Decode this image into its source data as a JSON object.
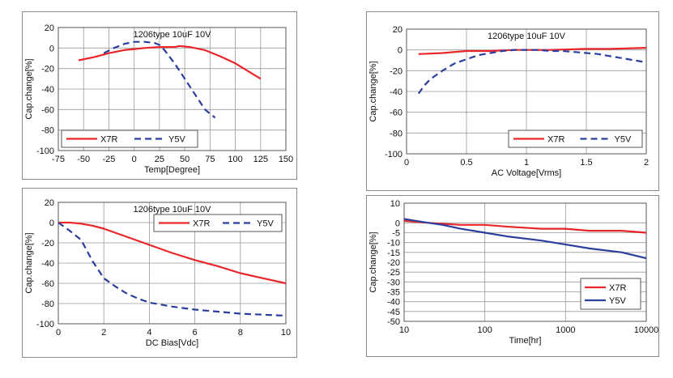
{
  "chart_data": [
    {
      "type": "line",
      "title": "1206type  10uF  10V",
      "xlabel": "Temp[Degree]",
      "ylabel": "Cap.change[%]",
      "xlim": [
        -75,
        150
      ],
      "ylim": [
        -100,
        20
      ],
      "x_scale": "linear",
      "x_ticks": [
        -75,
        -50,
        -25,
        0,
        25,
        50,
        75,
        100,
        125,
        150
      ],
      "y_ticks": [
        20,
        0,
        -20,
        -40,
        -60,
        -80,
        -100
      ],
      "x_tick_labels": [
        "-75",
        "-50",
        "-25",
        "0",
        "25",
        "50",
        "75",
        "100",
        "125",
        "150"
      ],
      "y_tick_labels": [
        "20",
        "0",
        "-20",
        "-40",
        "-60",
        "-80",
        "-100"
      ],
      "grid": true,
      "legend_position": "bottom-left",
      "legend_layout": "row",
      "series": [
        {
          "name": "X7R",
          "color": "#e8262a",
          "dash": false,
          "x": [
            -55,
            -40,
            -25,
            -10,
            0,
            10,
            25,
            40,
            45,
            55,
            70,
            85,
            100,
            125
          ],
          "y": [
            -12,
            -9,
            -5,
            -2,
            -1,
            0,
            1,
            1,
            2,
            1,
            -2,
            -8,
            -15,
            -30
          ]
        },
        {
          "name": "Y5V",
          "color": "#2a3f9d",
          "dash": true,
          "x": [
            -30,
            -20,
            -10,
            -5,
            0,
            5,
            10,
            20,
            25,
            30,
            40,
            50,
            60,
            70,
            80
          ],
          "y": [
            -5,
            0,
            4,
            5,
            6,
            6,
            6,
            5,
            3,
            -2,
            -15,
            -30,
            -45,
            -60,
            -68
          ]
        }
      ]
    },
    {
      "type": "line",
      "title": "1206type  10uF  10V",
      "xlabel": "AC Voltage[Vrms]",
      "ylabel": "Cap.change[%]",
      "xlim": [
        0,
        2
      ],
      "ylim": [
        -100,
        20
      ],
      "x_scale": "linear",
      "x_ticks": [
        0,
        0.5,
        1,
        1.5,
        2
      ],
      "y_ticks": [
        20,
        0,
        -20,
        -40,
        -60,
        -80,
        -100
      ],
      "x_tick_labels": [
        "0",
        "0.5",
        "1",
        "1.5",
        "2"
      ],
      "y_tick_labels": [
        "20",
        "0",
        "-20",
        "-40",
        "-60",
        "-80",
        "-100"
      ],
      "grid": true,
      "legend_position": "bottom-right",
      "legend_layout": "row",
      "series": [
        {
          "name": "X7R",
          "color": "#e8262a",
          "dash": false,
          "x": [
            0.1,
            0.3,
            0.5,
            0.7,
            0.9,
            1.0,
            1.2,
            1.5,
            1.7,
            2.0
          ],
          "y": [
            -4,
            -3,
            -1,
            -1,
            0,
            0,
            0,
            1,
            1,
            2
          ]
        },
        {
          "name": "Y5V",
          "color": "#2a3f9d",
          "dash": true,
          "x": [
            0.1,
            0.15,
            0.2,
            0.3,
            0.4,
            0.5,
            0.6,
            0.7,
            0.8,
            0.9,
            1.0,
            1.1,
            1.2,
            1.3,
            1.4,
            1.5,
            1.6,
            1.7,
            1.8,
            1.9,
            2.0
          ],
          "y": [
            -42,
            -34,
            -28,
            -20,
            -13,
            -9,
            -5,
            -3,
            -1,
            0,
            0,
            0,
            -1,
            -1,
            -2,
            -3,
            -4,
            -6,
            -8,
            -10,
            -12
          ]
        }
      ]
    },
    {
      "type": "line",
      "title": "1206type  10uF  10V",
      "xlabel": "DC Bias[Vdc]",
      "ylabel": "Cap.change[%]",
      "xlim": [
        0,
        10
      ],
      "ylim": [
        -100,
        20
      ],
      "x_scale": "linear",
      "x_ticks": [
        0,
        2,
        4,
        6,
        8,
        10
      ],
      "y_ticks": [
        20,
        0,
        -20,
        -40,
        -60,
        -80,
        -100
      ],
      "x_tick_labels": [
        "0",
        "2",
        "4",
        "6",
        "8",
        "10"
      ],
      "y_tick_labels": [
        "20",
        "0",
        "-20",
        "-40",
        "-60",
        "-80",
        "-100"
      ],
      "grid": true,
      "legend_position": "top-right",
      "legend_layout": "row",
      "series": [
        {
          "name": "X7R",
          "color": "#e8262a",
          "dash": false,
          "x": [
            0,
            0.5,
            1,
            1.5,
            2,
            3,
            4,
            5,
            6,
            7,
            8,
            9,
            10
          ],
          "y": [
            0,
            0,
            -1,
            -3,
            -6,
            -14,
            -22,
            -30,
            -37,
            -43,
            -50,
            -55,
            -60
          ]
        },
        {
          "name": "Y5V",
          "color": "#2a3f9d",
          "dash": true,
          "x": [
            0,
            0.5,
            1,
            1.5,
            2,
            2.5,
            3,
            3.5,
            4,
            5,
            6,
            7,
            8,
            9,
            10
          ],
          "y": [
            0,
            -8,
            -17,
            -38,
            -55,
            -63,
            -70,
            -75,
            -79,
            -83,
            -86,
            -88,
            -90,
            -91,
            -92
          ]
        }
      ]
    },
    {
      "type": "line",
      "title": "",
      "xlabel": "Time[hr]",
      "ylabel": "Cap.change[%]",
      "xlim": [
        10,
        10000
      ],
      "ylim": [
        -50,
        10
      ],
      "x_scale": "log",
      "x_ticks": [
        10,
        100,
        1000,
        10000
      ],
      "y_ticks": [
        10,
        0,
        -5,
        -10,
        -15,
        -20,
        -25,
        -30,
        -35,
        -40,
        -45,
        -50
      ],
      "x_tick_labels": [
        "10",
        "100",
        "1000",
        "10000"
      ],
      "y_tick_labels": [
        "10",
        "0",
        "-5",
        "-10",
        "-15",
        "-20",
        "-25",
        "-30",
        "-35",
        "-40",
        "-45",
        "-50"
      ],
      "grid": true,
      "legend_position": "bottom-right",
      "legend_layout": "column",
      "series": [
        {
          "name": "X7R",
          "color": "#e8262a",
          "dash": false,
          "x": [
            10,
            20,
            50,
            100,
            200,
            500,
            1000,
            2000,
            5000,
            10000
          ],
          "y": [
            1,
            0,
            -1,
            -1,
            -2,
            -3,
            -3,
            -4,
            -4,
            -5
          ]
        },
        {
          "name": "Y5V",
          "color": "#2a3f9d",
          "dash": false,
          "x": [
            10,
            20,
            30,
            50,
            100,
            200,
            500,
            1000,
            2000,
            5000,
            10000
          ],
          "y": [
            2,
            0,
            -1,
            -3,
            -5,
            -7,
            -9,
            -11,
            -13,
            -15,
            -18
          ]
        }
      ]
    }
  ]
}
